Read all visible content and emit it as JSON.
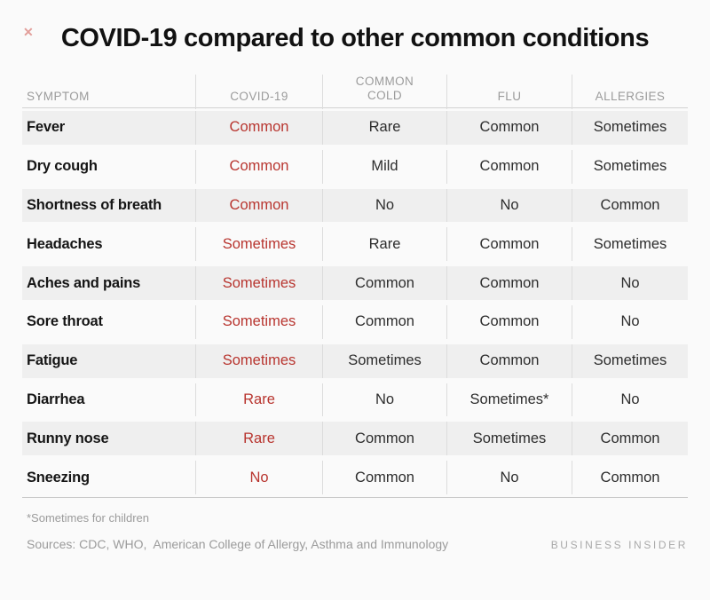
{
  "close_icon": "✕",
  "title": "COVID-19 compared to other common conditions",
  "table": {
    "columns": [
      "SYMPTOM",
      "COVID-19",
      "COMMON COLD",
      "FLU",
      "ALLERGIES"
    ],
    "rows": [
      [
        "Fever",
        "Common",
        "Rare",
        "Common",
        "Sometimes"
      ],
      [
        "Dry cough",
        "Common",
        "Mild",
        "Common",
        "Sometimes"
      ],
      [
        "Shortness of breath",
        "Common",
        "No",
        "No",
        "Common"
      ],
      [
        "Headaches",
        "Sometimes",
        "Rare",
        "Common",
        "Sometimes"
      ],
      [
        "Aches and pains",
        "Sometimes",
        "Common",
        "Common",
        "No"
      ],
      [
        "Sore throat",
        "Sometimes",
        "Common",
        "Common",
        "No"
      ],
      [
        "Fatigue",
        "Sometimes",
        "Sometimes",
        "Common",
        "Sometimes"
      ],
      [
        "Diarrhea",
        "Rare",
        "No",
        "Sometimes*",
        "No"
      ],
      [
        "Runny nose",
        "Rare",
        "Common",
        "Sometimes",
        "Common"
      ],
      [
        "Sneezing",
        "No",
        "Common",
        "No",
        "Common"
      ]
    ]
  },
  "footnote": "*Sometimes for children",
  "sources": "Sources: CDC, WHO,  American College of Allergy, Asthma and Immunology",
  "brand": "BUSINESS INSIDER",
  "colors": {
    "accent_red": "#b8352f",
    "row_shade": "#efefef",
    "header_text": "#9b9b9b",
    "background": "#fafafa"
  },
  "chart_data": {
    "type": "table",
    "title": "COVID-19 compared to other common conditions",
    "columns": [
      "SYMPTOM",
      "COVID-19",
      "COMMON COLD",
      "FLU",
      "ALLERGIES"
    ],
    "rows": [
      [
        "Fever",
        "Common",
        "Rare",
        "Common",
        "Sometimes"
      ],
      [
        "Dry cough",
        "Common",
        "Mild",
        "Common",
        "Sometimes"
      ],
      [
        "Shortness of breath",
        "Common",
        "No",
        "No",
        "Common"
      ],
      [
        "Headaches",
        "Sometimes",
        "Rare",
        "Common",
        "Sometimes"
      ],
      [
        "Aches and pains",
        "Sometimes",
        "Common",
        "Common",
        "No"
      ],
      [
        "Sore throat",
        "Sometimes",
        "Common",
        "Common",
        "No"
      ],
      [
        "Fatigue",
        "Sometimes",
        "Sometimes",
        "Common",
        "Sometimes"
      ],
      [
        "Diarrhea",
        "Rare",
        "No",
        "Sometimes*",
        "No"
      ],
      [
        "Runny nose",
        "Rare",
        "Common",
        "Sometimes",
        "Common"
      ],
      [
        "Sneezing",
        "No",
        "Common",
        "No",
        "Common"
      ]
    ],
    "notes": [
      "*Sometimes for children",
      "Sources: CDC, WHO, American College of Allergy, Asthma and Immunology"
    ],
    "highlight_column": "COVID-19",
    "layout": {
      "shaded_rows": "odd",
      "covid_column_color": "#b8352f"
    }
  }
}
